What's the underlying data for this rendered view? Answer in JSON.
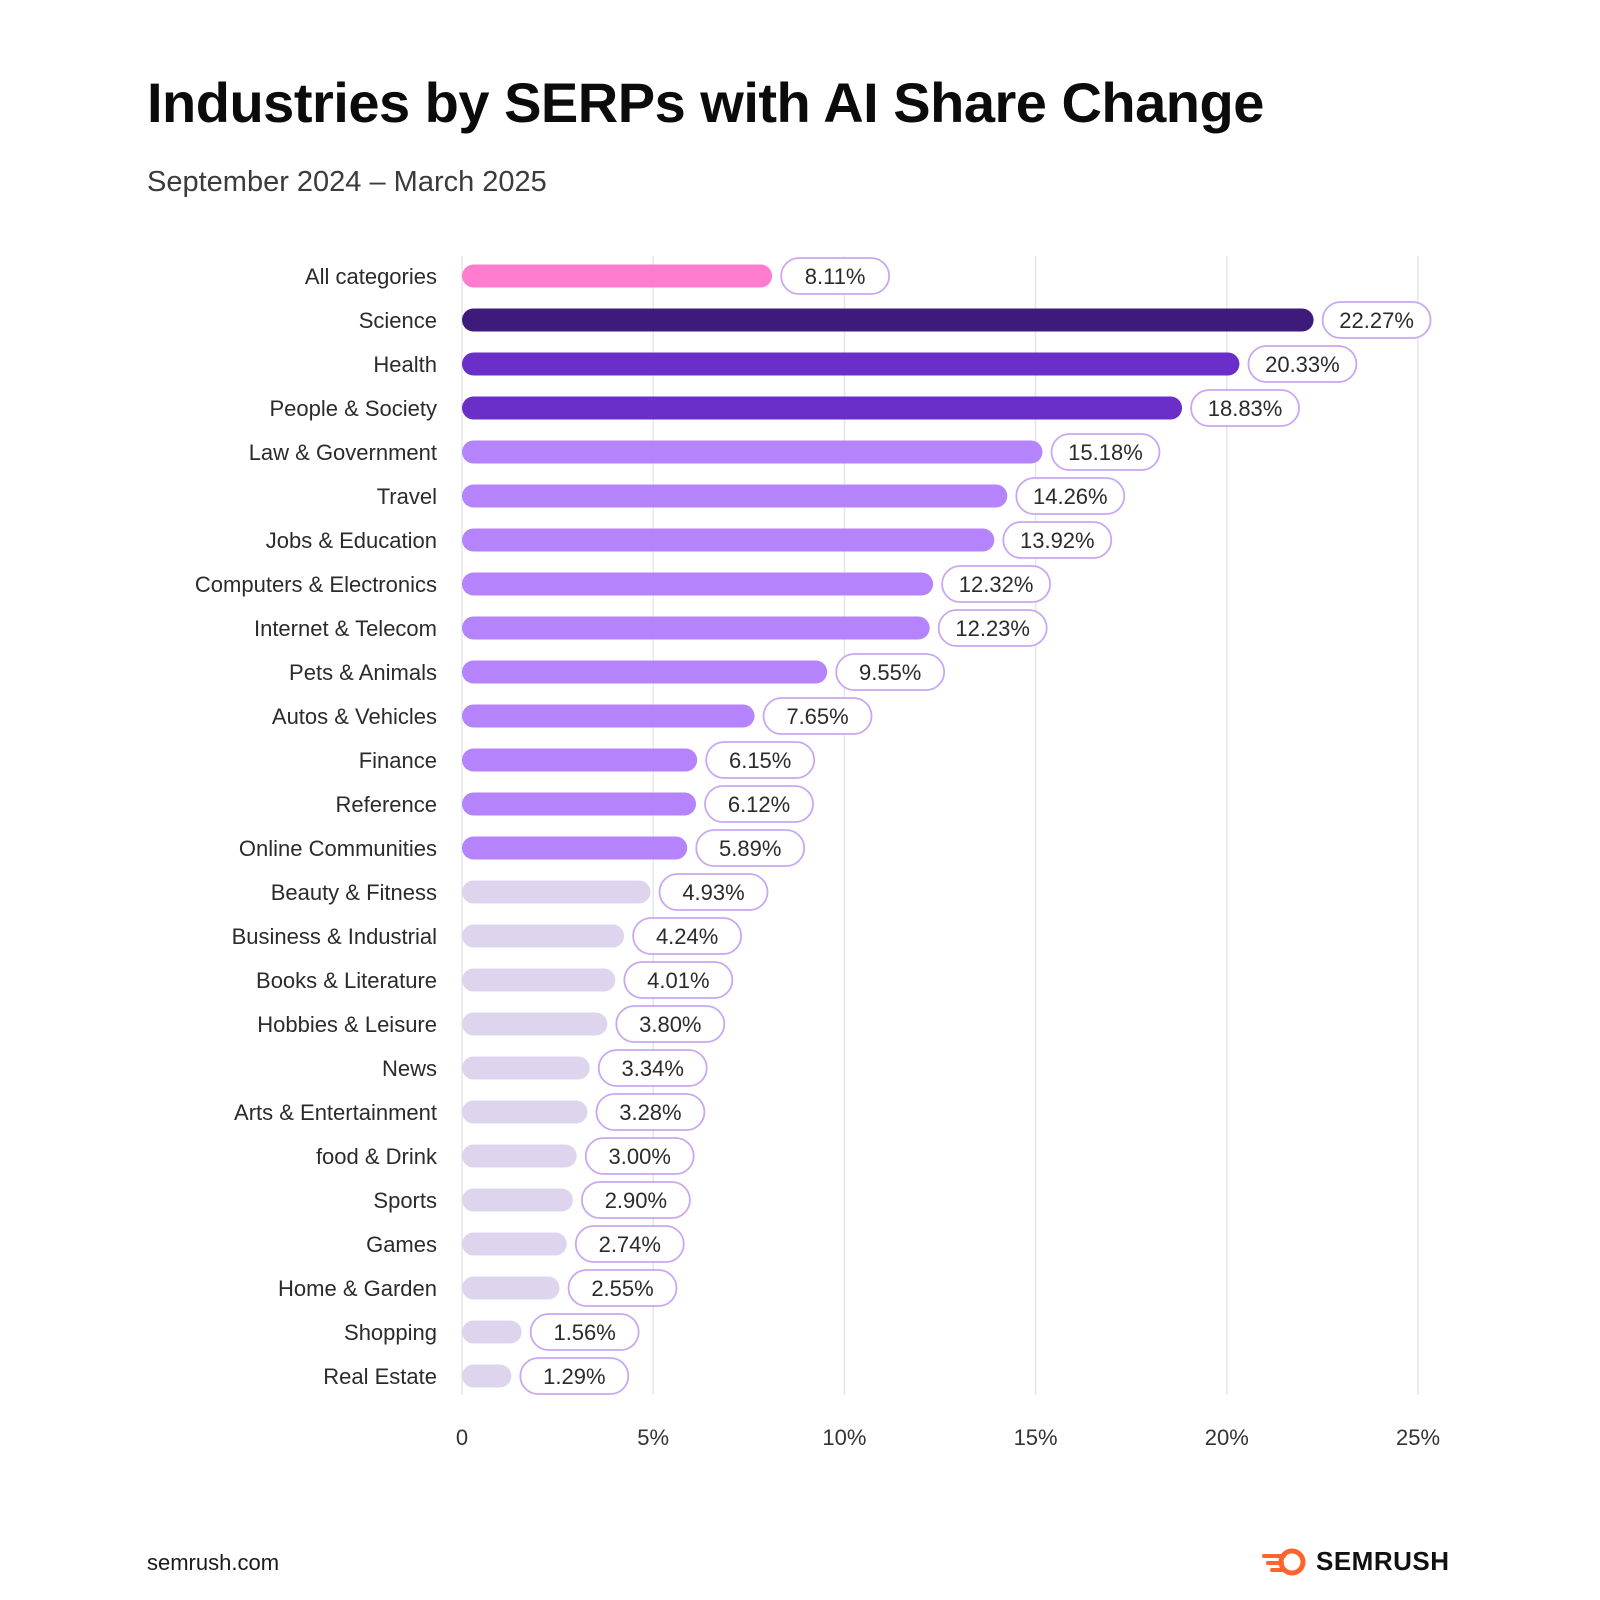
{
  "title": "Industries by SERPs with AI Share Change",
  "subtitle": "September 2024 – March 2025",
  "footer": {
    "site": "semrush.com",
    "brand": "SEMRUSH",
    "logo_icon": "semrush-fire-icon"
  },
  "colors": {
    "highlight": "#ff7ccf",
    "dark": "#3e1a7a",
    "strong": "#6a2fc9",
    "mid": "#b583fb",
    "light": "#ded4ee",
    "label_border": "#c9a8f2",
    "grid": "#e3e6ea",
    "brand": "#ff642d"
  },
  "chart_data": {
    "type": "bar",
    "orientation": "horizontal",
    "categories": [
      "All categories",
      "Science",
      "Health",
      "People & Society",
      "Law & Government",
      "Travel",
      "Jobs & Education",
      "Computers & Electronics",
      "Internet & Telecom",
      "Pets & Animals",
      "Autos & Vehicles",
      "Finance",
      "Reference",
      "Online Communities",
      "Beauty & Fitness",
      "Business &  Industrial",
      "Books & Literature",
      "Hobbies & Leisure",
      "News",
      "Arts & Entertainment",
      "food & Drink",
      "Sports",
      "Games",
      "Home & Garden",
      "Shopping",
      "Real Estate"
    ],
    "values": [
      8.11,
      22.27,
      20.33,
      18.83,
      15.18,
      14.26,
      13.92,
      12.32,
      12.23,
      9.55,
      7.65,
      6.15,
      6.12,
      5.89,
      4.93,
      4.24,
      4.01,
      3.8,
      3.34,
      3.28,
      3.0,
      2.9,
      2.74,
      2.55,
      1.56,
      1.29
    ],
    "value_labels": [
      "8.11%",
      "22.27%",
      "20.33%",
      "18.83%",
      "15.18%",
      "14.26%",
      "13.92%",
      "12.32%",
      "12.23%",
      "9.55%",
      "7.65%",
      "6.15%",
      "6.12%",
      "5.89%",
      "4.93%",
      "4.24%",
      "4.01%",
      "3.80%",
      "3.34%",
      "3.28%",
      "3.00%",
      "2.90%",
      "2.74%",
      "2.55%",
      "1.56%",
      "1.29%"
    ],
    "color_groups": [
      "highlight",
      "dark",
      "strong",
      "strong",
      "mid",
      "mid",
      "mid",
      "mid",
      "mid",
      "mid",
      "mid",
      "mid",
      "mid",
      "mid",
      "light",
      "light",
      "light",
      "light",
      "light",
      "light",
      "light",
      "light",
      "light",
      "light",
      "light",
      "light"
    ],
    "xlim": [
      0,
      25
    ],
    "xticks": [
      0,
      5,
      10,
      15,
      20,
      25
    ],
    "xtick_labels": [
      "0",
      "5%",
      "10%",
      "15%",
      "20%",
      "25%"
    ],
    "xlabel": "",
    "ylabel": "",
    "grid": "vertical"
  }
}
